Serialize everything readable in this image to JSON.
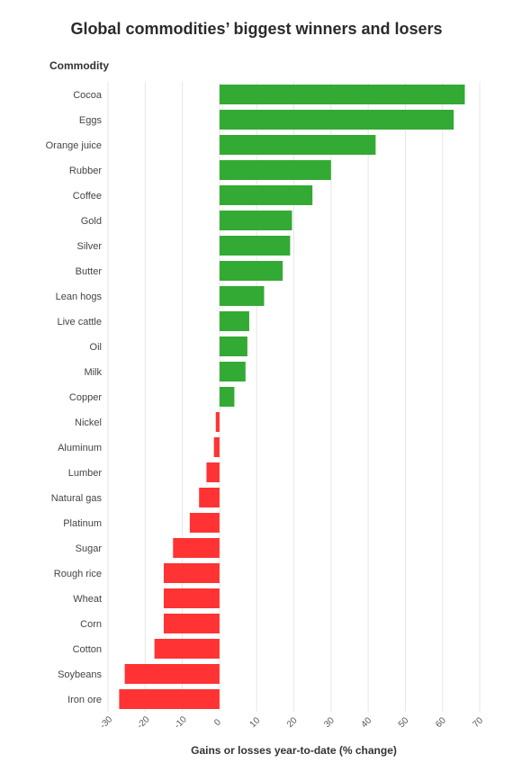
{
  "chart_data": {
    "type": "bar",
    "orientation": "horizontal",
    "title": "Global commodities’ biggest winners and losers",
    "ylabel": "Commodity",
    "xlabel": "Gains or losses year-to-date (% change)",
    "xlim": [
      -30,
      70
    ],
    "x_ticks": [
      -30,
      -20,
      -10,
      0,
      10,
      20,
      30,
      40,
      50,
      60,
      70
    ],
    "grid": "vertical",
    "colors": {
      "gain": "#33aa33",
      "loss": "#ff3333"
    },
    "categories": [
      "Cocoa",
      "Eggs",
      "Orange juice",
      "Rubber",
      "Coffee",
      "Gold",
      "Silver",
      "Butter",
      "Lean hogs",
      "Live cattle",
      "Oil",
      "Milk",
      "Copper",
      "Nickel",
      "Aluminum",
      "Lumber",
      "Natural gas",
      "Platinum",
      "Sugar",
      "Rough rice",
      "Wheat",
      "Corn",
      "Cotton",
      "Soybeans",
      "Iron ore"
    ],
    "values": [
      66,
      63,
      42,
      30,
      25,
      19.5,
      19,
      17,
      12,
      8,
      7.5,
      7,
      4,
      -1,
      -1.5,
      -3.5,
      -5.5,
      -8,
      -12.5,
      -15,
      -15,
      -15,
      -17.5,
      -25.5,
      -27
    ]
  }
}
